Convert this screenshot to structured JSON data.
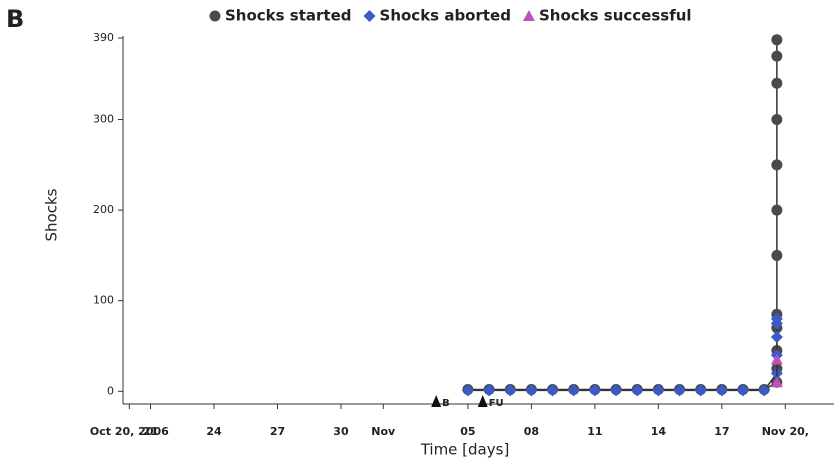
{
  "panel_label": "B",
  "chart_data": {
    "type": "line",
    "x_label": "Time [days]",
    "y_label": "Shocks",
    "xlim": [
      -0.3,
      33.3
    ],
    "ylim": [
      -14,
      390
    ],
    "xticks": [
      {
        "value": 0,
        "label": "Oct 20, 2006"
      },
      {
        "value": 1,
        "label": "21"
      },
      {
        "value": 4,
        "label": "24"
      },
      {
        "value": 7,
        "label": "27"
      },
      {
        "value": 10,
        "label": "30"
      },
      {
        "value": 12,
        "label": "Nov"
      },
      {
        "value": 16,
        "label": "05"
      },
      {
        "value": 19,
        "label": "08"
      },
      {
        "value": 22,
        "label": "11"
      },
      {
        "value": 25,
        "label": "14"
      },
      {
        "value": 28,
        "label": "17"
      },
      {
        "value": 31,
        "label": "Nov 20,"
      }
    ],
    "yticks": [
      0,
      100,
      200,
      300,
      390
    ],
    "legend": "top",
    "annotations": [
      {
        "text": "B",
        "x": 14.5
      },
      {
        "text": "FU",
        "x": 16.7
      }
    ],
    "series": [
      {
        "name": "Shocks started",
        "color": "#4a4a4a",
        "marker": "circle",
        "x": [
          16,
          17,
          18,
          19,
          20,
          21,
          22,
          23,
          24,
          25,
          26,
          27,
          28,
          29,
          30,
          30.6,
          30.6,
          30.6,
          30.6,
          30.6,
          30.6,
          30.6,
          30.6,
          30.6,
          30.6,
          30.6,
          30.6
        ],
        "values": [
          2,
          2,
          2,
          2,
          2,
          2,
          2,
          2,
          2,
          2,
          2,
          2,
          2,
          2,
          2,
          10,
          25,
          45,
          70,
          85,
          150,
          200,
          250,
          300,
          340,
          370,
          388
        ]
      },
      {
        "name": "Shocks aborted",
        "color": "#3a5bc7",
        "marker": "diamond",
        "x": [
          16,
          17,
          18,
          19,
          20,
          21,
          22,
          23,
          24,
          25,
          26,
          27,
          28,
          29,
          30,
          30.6,
          30.6,
          30.6,
          30.6,
          30.6
        ],
        "values": [
          1,
          1,
          1,
          1,
          1,
          1,
          1,
          1,
          1,
          1,
          1,
          1,
          1,
          1,
          1,
          20,
          40,
          60,
          80,
          75
        ]
      },
      {
        "name": "Shocks successful",
        "color": "#c050b8",
        "marker": "triangle",
        "x": [
          30.6,
          30.6
        ],
        "values": [
          10,
          35
        ]
      }
    ]
  }
}
